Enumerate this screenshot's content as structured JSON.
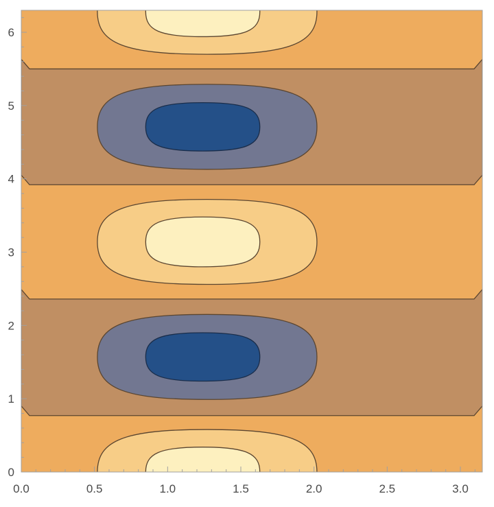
{
  "chart_data": {
    "type": "contour",
    "title": "",
    "xlabel": "",
    "ylabel": "",
    "xlim": [
      0,
      3.15
    ],
    "ylim": [
      0,
      6.3
    ],
    "x_ticks": [
      0.0,
      0.5,
      1.0,
      1.5,
      2.0,
      2.5,
      3.0
    ],
    "x_tick_labels": [
      "0.0",
      "0.5",
      "1.0",
      "1.5",
      "2.0",
      "2.5",
      "3.0"
    ],
    "y_ticks": [
      0,
      1,
      2,
      3,
      4,
      5,
      6
    ],
    "y_tick_labels": [
      "0",
      "1",
      "2",
      "3",
      "4",
      "5",
      "6"
    ],
    "grid": false,
    "legend": "none",
    "colors": {
      "background_band": "#eeac5e",
      "low_band": "#c08f63",
      "mid_high": "#f7cd87",
      "peak": "#fdf0bf",
      "mid_low": "#727791",
      "trough": "#245088",
      "contour_line": "#5a4530",
      "frame": "#a0a0a0"
    },
    "horizontal_bands": [
      {
        "level": "low",
        "y_from": 0.77,
        "y_to": 2.36
      },
      {
        "level": "low",
        "y_from": 3.92,
        "y_to": 5.5
      }
    ],
    "peaks": [
      {
        "x": 1.24,
        "y": 0.0,
        "outer_x_range": [
          0.52,
          2.02
        ],
        "outer_y_halfwidth": 0.58,
        "inner_x_range": [
          0.85,
          1.63
        ],
        "inner_y_halfwidth": 0.34
      },
      {
        "x": 1.24,
        "y": 3.14,
        "outer_x_range": [
          0.52,
          2.02
        ],
        "outer_y_halfwidth": 0.58,
        "inner_x_range": [
          0.85,
          1.63
        ],
        "inner_y_halfwidth": 0.34
      },
      {
        "x": 1.24,
        "y": 6.28,
        "outer_x_range": [
          0.52,
          2.02
        ],
        "outer_y_halfwidth": 0.58,
        "inner_x_range": [
          0.85,
          1.63
        ],
        "inner_y_halfwidth": 0.34
      }
    ],
    "troughs": [
      {
        "x": 1.24,
        "y": 1.57,
        "outer_x_range": [
          0.52,
          2.02
        ],
        "outer_y_halfwidth": 0.58,
        "inner_x_range": [
          0.85,
          1.63
        ],
        "inner_y_halfwidth": 0.33
      },
      {
        "x": 1.24,
        "y": 4.71,
        "outer_x_range": [
          0.52,
          2.02
        ],
        "outer_y_halfwidth": 0.58,
        "inner_x_range": [
          0.85,
          1.63
        ],
        "inner_y_halfwidth": 0.33
      }
    ]
  }
}
